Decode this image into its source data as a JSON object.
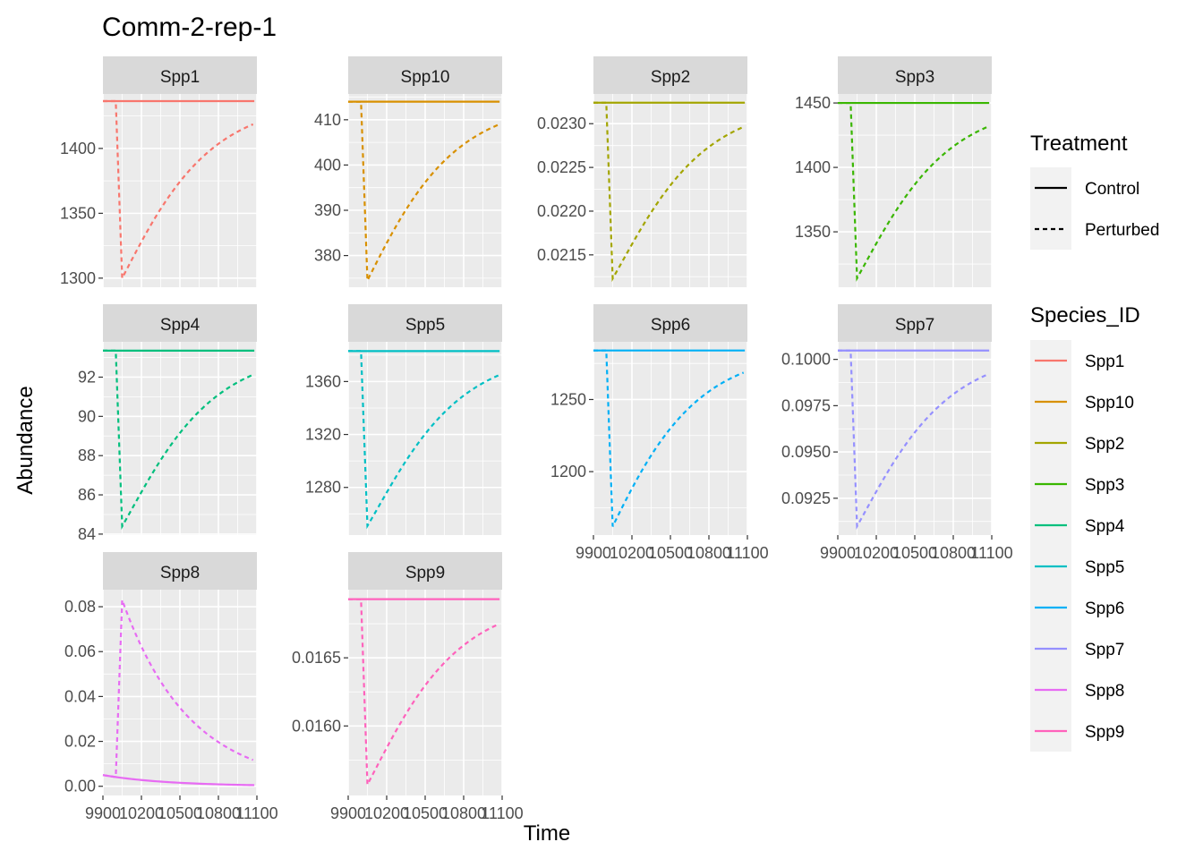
{
  "chart_data": {
    "type": "line",
    "title": "Comm-2-rep-1",
    "xlabel": "Time",
    "ylabel": "Abundance",
    "x_ticks": [
      9900,
      10200,
      10500,
      10800,
      11100
    ],
    "x_tick_labels": [
      "9900",
      "10200",
      "10500",
      "10800",
      "11100"
    ],
    "xlim": [
      9900,
      11100
    ],
    "grid": true,
    "facet_layout": "3 rows x 4 columns, free y scales",
    "legend": {
      "placement": "right",
      "treatment_title": "Treatment",
      "treatment_entries": [
        {
          "label": "Control",
          "linetype": "solid"
        },
        {
          "label": "Perturbed",
          "linetype": "dashed"
        }
      ],
      "species_title": "Species_ID"
    },
    "perturbation": {
      "pulse_time": 10000,
      "trough_time": 10050,
      "recovery_end_time": 11080
    },
    "panels": [
      {
        "name": "Spp1",
        "color": "#F8766D",
        "control": 1436.5,
        "trough": 1300,
        "end": 1419,
        "y_ticks": [
          1300,
          1350,
          1400
        ],
        "y_tick_labels": [
          "1300",
          "1350",
          "1400"
        ],
        "ylim": [
          1293,
          1442
        ]
      },
      {
        "name": "Spp10",
        "color": "#D89000",
        "control": 414,
        "trough": 374.5,
        "end": 409,
        "y_ticks": [
          380,
          390,
          400,
          410
        ],
        "y_tick_labels": [
          "380",
          "390",
          "400",
          "410"
        ],
        "ylim": [
          373,
          415.7
        ]
      },
      {
        "name": "Spp2",
        "color": "#A3A500",
        "control": 0.02324,
        "trough": 0.02123,
        "end": 0.02297,
        "y_ticks": [
          0.0215,
          0.022,
          0.0225,
          0.023
        ],
        "y_tick_labels": [
          "0.0215",
          "0.0220",
          "0.0225",
          "0.0230"
        ],
        "ylim": [
          0.02113,
          0.02334
        ]
      },
      {
        "name": "Spp3",
        "color": "#39B600",
        "control": 1450,
        "trough": 1314,
        "end": 1432,
        "y_ticks": [
          1350,
          1400,
          1450
        ],
        "y_tick_labels": [
          "1350",
          "1400",
          "1450"
        ],
        "ylim": [
          1307,
          1457
        ]
      },
      {
        "name": "Spp4",
        "color": "#00BF7D",
        "control": 93.35,
        "trough": 84.4,
        "end": 92.15,
        "y_ticks": [
          84,
          86,
          88,
          90,
          92
        ],
        "y_tick_labels": [
          "84",
          "86",
          "88",
          "90",
          "92"
        ],
        "ylim": [
          83.95,
          93.8
        ]
      },
      {
        "name": "Spp5",
        "color": "#00BFC4",
        "control": 1383,
        "trough": 1251,
        "end": 1365,
        "y_ticks": [
          1280,
          1320,
          1360
        ],
        "y_tick_labels": [
          "1280",
          "1320",
          "1360"
        ],
        "ylim": [
          1244,
          1390
        ]
      },
      {
        "name": "Spp6",
        "color": "#00B0F6",
        "control": 1284,
        "trough": 1162,
        "end": 1269,
        "y_ticks": [
          1200,
          1250
        ],
        "y_tick_labels": [
          "1200",
          "1250"
        ],
        "ylim": [
          1156,
          1290
        ]
      },
      {
        "name": "Spp7",
        "color": "#9590FF",
        "control": 0.10048,
        "trough": 0.09099,
        "end": 0.09922,
        "y_ticks": [
          0.0925,
          0.095,
          0.0975,
          0.1
        ],
        "y_tick_labels": [
          "0.0925",
          "0.0950",
          "0.0975",
          "0.1000"
        ],
        "ylim": [
          0.09051,
          0.10095
        ]
      },
      {
        "name": "Spp8",
        "color": "#E76BF3",
        "control_start": 0.005,
        "control_end": 0.0005,
        "peak": 0.083,
        "end": 0.0115,
        "y_ticks": [
          0,
          0.02,
          0.04,
          0.06,
          0.08
        ],
        "y_tick_labels": [
          "0.00",
          "0.02",
          "0.04",
          "0.06",
          "0.08"
        ],
        "ylim": [
          -0.0041,
          0.0876
        ]
      },
      {
        "name": "Spp9",
        "color": "#FF62BC",
        "control": 0.01693,
        "trough": 0.01557,
        "end": 0.01675,
        "y_ticks": [
          0.016,
          0.0165
        ],
        "y_tick_labels": [
          "0.0160",
          "0.0165"
        ],
        "ylim": [
          0.01549,
          0.017
        ]
      }
    ]
  }
}
